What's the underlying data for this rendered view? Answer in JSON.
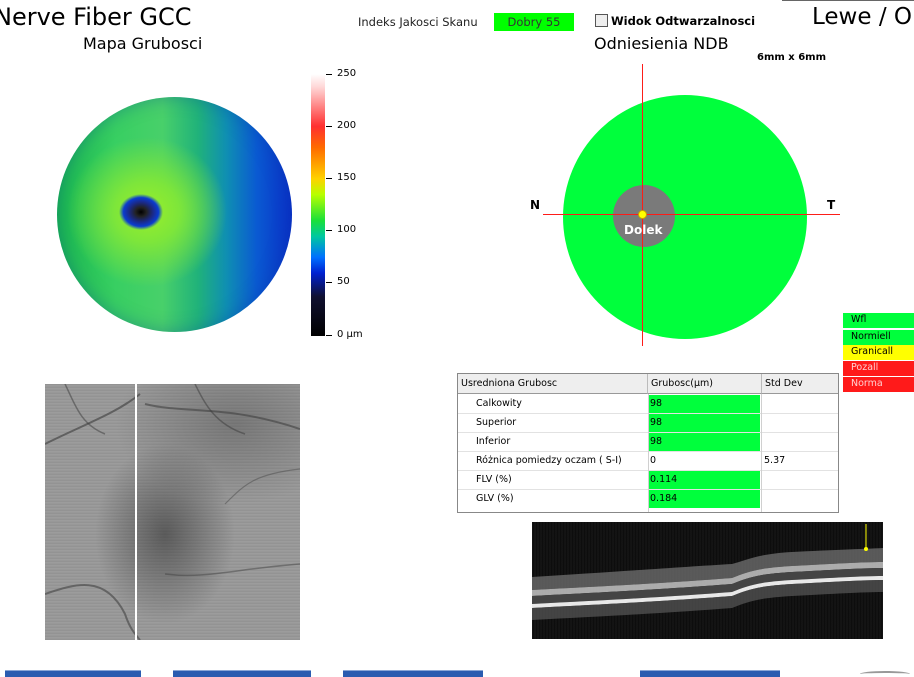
{
  "header": {
    "title": "Nerve Fiber GCC",
    "subtitle": "Mapa Grubosci",
    "quality_label": "Indeks Jakosci Skanu",
    "quality_value": "Dobry  55",
    "repro_label": "Widok Odtwarzalnosci",
    "eye": "Lewe / O",
    "ndb_title": "Odniesienia NDB",
    "scan_size": "6mm x 6mm"
  },
  "colorbar": {
    "ticks": [
      "250",
      "200",
      "150",
      "100",
      "50",
      "0 µm"
    ]
  },
  "ndb_map": {
    "nasal": "N",
    "temporal": "T",
    "fovea": "Dolek",
    "color": "#00ff3c"
  },
  "legend": [
    {
      "label": "Wfl",
      "color": "#00ff3c"
    },
    {
      "label": "Normiell",
      "color": "#00ff3c"
    },
    {
      "label": "Granicall",
      "color": "#ffff00"
    },
    {
      "label": "Pozall",
      "color": "#ff1a1a"
    },
    {
      "label": "Norma",
      "color": "#ff1a1a"
    }
  ],
  "table": {
    "headers": [
      "Usredniona Grubosc",
      "Grubosc(µm)",
      "Std Dev"
    ],
    "rows": [
      {
        "label": "Calkowity",
        "value": "98",
        "std": "",
        "highlight": true
      },
      {
        "label": "Superior",
        "value": "98",
        "std": "",
        "highlight": true
      },
      {
        "label": "Inferior",
        "value": "98",
        "std": "",
        "highlight": true
      },
      {
        "label": "Różnica pomiedzy oczam ( S-I)",
        "value": "0",
        "std": "5.37",
        "highlight": false
      },
      {
        "label": "FLV (%)",
        "value": "0.114",
        "std": "",
        "highlight": true
      },
      {
        "label": "GLV (%)",
        "value": "0.184",
        "std": "",
        "highlight": true
      }
    ]
  }
}
